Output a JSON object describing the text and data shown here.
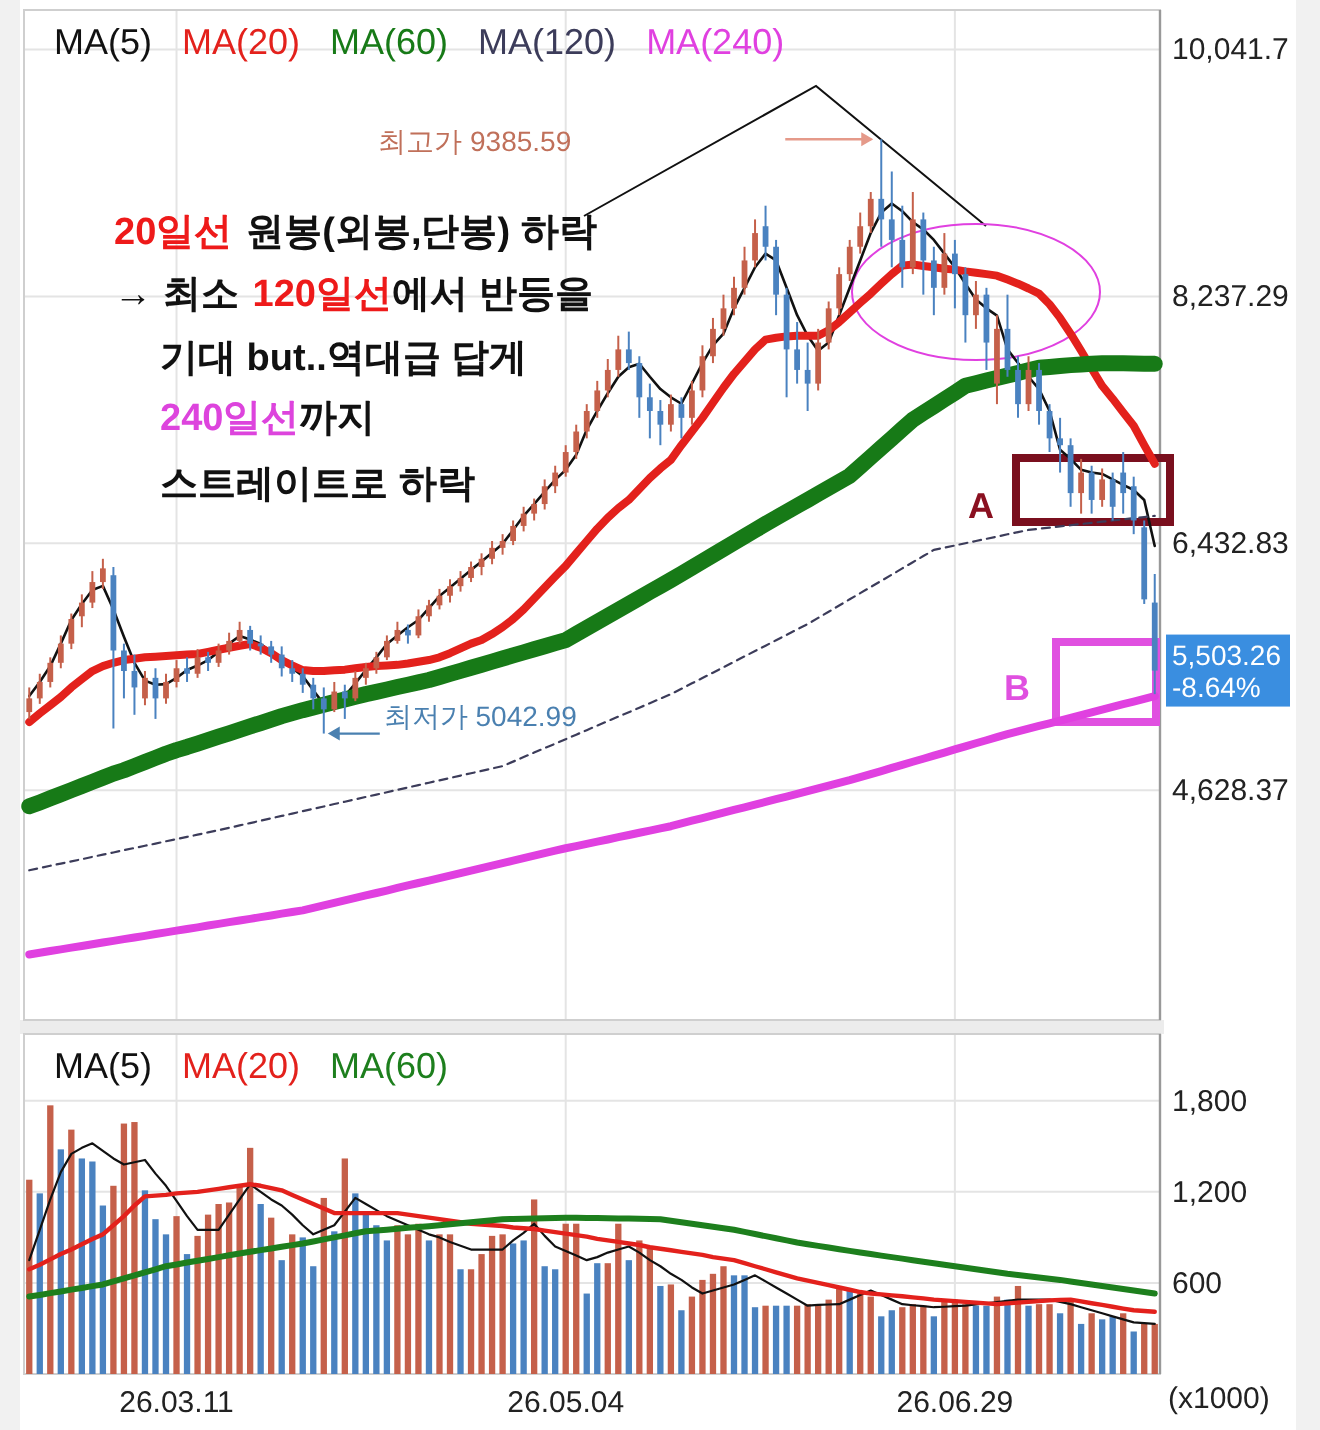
{
  "chart_data": [
    {
      "type": "candlestick",
      "legend": "top left",
      "grid": true,
      "tick_labels": "y",
      "ylim": [
        2950,
        10330
      ],
      "yticks": [
        {
          "value": 4628.37,
          "label": "4,628.37"
        },
        {
          "value": 6432.83,
          "label": "6,432.83"
        },
        {
          "value": 8237.29,
          "label": "8,237.29"
        },
        {
          "value": 10041.7,
          "label": "10,041.7"
        }
      ],
      "categories": [
        null,
        null,
        null,
        null,
        null,
        null,
        null,
        null,
        null,
        null,
        null,
        null,
        null,
        null,
        "26.03.11",
        null,
        null,
        null,
        null,
        null,
        null,
        null,
        null,
        null,
        null,
        null,
        null,
        null,
        null,
        null,
        null,
        null,
        null,
        null,
        null,
        null,
        null,
        null,
        null,
        null,
        null,
        null,
        null,
        null,
        null,
        null,
        null,
        null,
        null,
        null,
        null,
        "26.05.04",
        null,
        null,
        null,
        null,
        null,
        null,
        null,
        null,
        null,
        null,
        null,
        null,
        null,
        null,
        null,
        null,
        null,
        null,
        null,
        null,
        null,
        null,
        null,
        null,
        null,
        null,
        null,
        null,
        null,
        null,
        null,
        null,
        null,
        null,
        null,
        null,
        "26.06.29",
        null,
        null,
        null,
        null,
        null,
        null,
        null,
        null,
        null,
        null,
        null,
        null,
        null,
        null,
        null,
        null,
        null,
        null,
        null
      ],
      "ohlc": [
        [
          5200,
          5380,
          5150,
          5300
        ],
        [
          5300,
          5480,
          5260,
          5420
        ],
        [
          5420,
          5600,
          5380,
          5560
        ],
        [
          5560,
          5760,
          5520,
          5700
        ],
        [
          5700,
          5920,
          5660,
          5880
        ],
        [
          5900,
          6060,
          5820,
          6000
        ],
        [
          6000,
          6230,
          5960,
          6150
        ],
        [
          6150,
          6320,
          6100,
          6250
        ],
        [
          6200,
          6260,
          5080,
          5650
        ],
        [
          5650,
          5700,
          5300,
          5500
        ],
        [
          5500,
          5620,
          5180,
          5380
        ],
        [
          5300,
          5500,
          5250,
          5450
        ],
        [
          5450,
          5520,
          5150,
          5300
        ],
        [
          5300,
          5480,
          5260,
          5420
        ],
        [
          5420,
          5580,
          5380,
          5520
        ],
        [
          5520,
          5600,
          5420,
          5480
        ],
        [
          5480,
          5660,
          5450,
          5600
        ],
        [
          5600,
          5640,
          5500,
          5560
        ],
        [
          5560,
          5700,
          5530,
          5650
        ],
        [
          5650,
          5780,
          5620,
          5720
        ],
        [
          5720,
          5860,
          5700,
          5800
        ],
        [
          5800,
          5830,
          5650,
          5700
        ],
        [
          5700,
          5760,
          5620,
          5680
        ],
        [
          5680,
          5720,
          5560,
          5620
        ],
        [
          5620,
          5680,
          5460,
          5520
        ],
        [
          5520,
          5580,
          5420,
          5480
        ],
        [
          5480,
          5520,
          5340,
          5400
        ],
        [
          5400,
          5450,
          5220,
          5300
        ],
        [
          5300,
          5380,
          5042.99,
          5220
        ],
        [
          5220,
          5420,
          5200,
          5350
        ],
        [
          5350,
          5400,
          5150,
          5300
        ],
        [
          5300,
          5500,
          5280,
          5450
        ],
        [
          5450,
          5560,
          5400,
          5520
        ],
        [
          5520,
          5640,
          5480,
          5600
        ],
        [
          5600,
          5760,
          5580,
          5720
        ],
        [
          5720,
          5860,
          5700,
          5800
        ],
        [
          5800,
          5840,
          5700,
          5760
        ],
        [
          5760,
          5950,
          5740,
          5900
        ],
        [
          5900,
          6020,
          5860,
          5980
        ],
        [
          5980,
          6100,
          5950,
          6050
        ],
        [
          6050,
          6170,
          6000,
          6120
        ],
        [
          6120,
          6230,
          6080,
          6180
        ],
        [
          6180,
          6300,
          6150,
          6260
        ],
        [
          6260,
          6360,
          6200,
          6320
        ],
        [
          6320,
          6450,
          6280,
          6400
        ],
        [
          6400,
          6500,
          6350,
          6450
        ],
        [
          6450,
          6600,
          6420,
          6560
        ],
        [
          6560,
          6700,
          6520,
          6650
        ],
        [
          6650,
          6760,
          6600,
          6720
        ],
        [
          6720,
          6900,
          6680,
          6850
        ],
        [
          6850,
          7000,
          6800,
          6950
        ],
        [
          6950,
          7150,
          6920,
          7100
        ],
        [
          7100,
          7300,
          7050,
          7250
        ],
        [
          7250,
          7450,
          7200,
          7400
        ],
        [
          7400,
          7620,
          7350,
          7550
        ],
        [
          7550,
          7780,
          7500,
          7700
        ],
        [
          7700,
          7950,
          7650,
          7850
        ],
        [
          7850,
          7980,
          7700,
          7750
        ],
        [
          7750,
          7800,
          7350,
          7500
        ],
        [
          7500,
          7600,
          7200,
          7400
        ],
        [
          7400,
          7480,
          7150,
          7300
        ],
        [
          7300,
          7520,
          7250,
          7450
        ],
        [
          7450,
          7500,
          7200,
          7350
        ],
        [
          7350,
          7620,
          7300,
          7550
        ],
        [
          7550,
          7880,
          7500,
          7800
        ],
        [
          7800,
          8080,
          7750,
          8000
        ],
        [
          8000,
          8250,
          7950,
          8150
        ],
        [
          8150,
          8380,
          8100,
          8300
        ],
        [
          8300,
          8600,
          8250,
          8500
        ],
        [
          8500,
          8800,
          8450,
          8700
        ],
        [
          8750,
          8900,
          8500,
          8600
        ],
        [
          8600,
          8650,
          8100,
          8250
        ],
        [
          8250,
          8300,
          7500,
          7850
        ],
        [
          7850,
          8050,
          7600,
          7700
        ],
        [
          7700,
          7900,
          7400,
          7600
        ],
        [
          7600,
          8000,
          7550,
          7900
        ],
        [
          7900,
          8200,
          7850,
          8150
        ],
        [
          8150,
          8450,
          8100,
          8400
        ],
        [
          8400,
          8650,
          8350,
          8600
        ],
        [
          8600,
          8850,
          8550,
          8750
        ],
        [
          8750,
          9000,
          8700,
          8950
        ],
        [
          8950,
          9385.59,
          8600,
          8800
        ],
        [
          8800,
          9150,
          8450,
          8650
        ],
        [
          8650,
          8900,
          8300,
          8450
        ],
        [
          8450,
          9000,
          8400,
          8800
        ],
        [
          8800,
          8850,
          8250,
          8500
        ],
        [
          8500,
          8600,
          8100,
          8300
        ],
        [
          8300,
          8700,
          8250,
          8550
        ],
        [
          8550,
          8650,
          8150,
          8400
        ],
        [
          8400,
          8450,
          7900,
          8100
        ],
        [
          8100,
          8350,
          8000,
          8250
        ],
        [
          8250,
          8300,
          7700,
          7900
        ],
        [
          7600,
          8100,
          7450,
          8000
        ],
        [
          8000,
          8250,
          7650,
          7700
        ],
        [
          7700,
          7800,
          7350,
          7450
        ],
        [
          7450,
          7800,
          7400,
          7700
        ],
        [
          7700,
          7750,
          7300,
          7400
        ],
        [
          7400,
          7450,
          7100,
          7200
        ],
        [
          7200,
          7350,
          6950,
          7150
        ],
        [
          7150,
          7200,
          6700,
          6800
        ],
        [
          6800,
          7050,
          6650,
          6950
        ],
        [
          6950,
          7000,
          6650,
          6750
        ],
        [
          6750,
          6980,
          6700,
          6900
        ],
        [
          6900,
          6950,
          6600,
          6700
        ],
        [
          6950,
          7100,
          6650,
          6800
        ],
        [
          6850,
          6920,
          6500,
          6600
        ],
        [
          6550,
          6600,
          5990,
          6023.6
        ],
        [
          6000,
          6209,
          5331,
          5503.26
        ]
      ],
      "colors": [
        "#c5604a",
        "#c5604a",
        "#c5604a",
        "#c5604a",
        "#c5604a",
        "#c5604a",
        "#c5604a",
        "#c5604a",
        "#4a82c0",
        "#4a82c0",
        "#4a82c0",
        "#c5604a",
        "#4a82c0",
        "#c5604a",
        "#c5604a",
        "#4a82c0",
        "#c5604a",
        "#4a82c0",
        "#c5604a",
        "#c5604a",
        "#c5604a",
        "#4a82c0",
        "#4a82c0",
        "#4a82c0",
        "#4a82c0",
        "#4a82c0",
        "#4a82c0",
        "#4a82c0",
        "#4a82c0",
        "#c5604a",
        "#4a82c0",
        "#c5604a",
        "#c5604a",
        "#c5604a",
        "#c5604a",
        "#c5604a",
        "#4a82c0",
        "#c5604a",
        "#c5604a",
        "#c5604a",
        "#c5604a",
        "#c5604a",
        "#c5604a",
        "#c5604a",
        "#c5604a",
        "#c5604a",
        "#c5604a",
        "#c5604a",
        "#c5604a",
        "#c5604a",
        "#c5604a",
        "#c5604a",
        "#c5604a",
        "#c5604a",
        "#c5604a",
        "#c5604a",
        "#c5604a",
        "#4a82c0",
        "#4a82c0",
        "#4a82c0",
        "#4a82c0",
        "#c5604a",
        "#4a82c0",
        "#c5604a",
        "#c5604a",
        "#c5604a",
        "#c5604a",
        "#c5604a",
        "#c5604a",
        "#c5604a",
        "#4a82c0",
        "#4a82c0",
        "#4a82c0",
        "#4a82c0",
        "#4a82c0",
        "#c5604a",
        "#c5604a",
        "#c5604a",
        "#c5604a",
        "#c5604a",
        "#c5604a",
        "#4a82c0",
        "#4a82c0",
        "#4a82c0",
        "#c5604a",
        "#4a82c0",
        "#4a82c0",
        "#c5604a",
        "#4a82c0",
        "#4a82c0",
        "#c5604a",
        "#4a82c0",
        "#c5604a",
        "#4a82c0",
        "#4a82c0",
        "#c5604a",
        "#4a82c0",
        "#4a82c0",
        "#4a82c0",
        "#4a82c0",
        "#c5604a",
        "#4a82c0",
        "#c5604a",
        "#4a82c0",
        "#4a82c0",
        "#4a82c0",
        "#4a82c0",
        "#4a82c0"
      ],
      "series": [
        {
          "type": "line",
          "name": "MA(5)",
          "color": "#111111",
          "values": [
            5317,
            5420,
            5536,
            5700,
            5873,
            5990,
            6092,
            6122,
            5950,
            5750,
            5560,
            5430,
            5400,
            5404,
            5450,
            5507,
            5540,
            5580,
            5640,
            5700,
            5756,
            5730,
            5697,
            5640,
            5580,
            5520,
            5463,
            5360,
            5258,
            5280,
            5317,
            5410,
            5507,
            5600,
            5697,
            5760,
            5820,
            5873,
            5960,
            6048,
            6110,
            6175,
            6239,
            6300,
            6365,
            6429,
            6530,
            6633,
            6720,
            6810,
            6897,
            6970,
            7080,
            7263,
            7400,
            7530,
            7650,
            7720,
            7745,
            7650,
            7560,
            7500,
            7453,
            7600,
            7750,
            7880,
            7965,
            8150,
            8300,
            8450,
            8550,
            8500,
            8300,
            8100,
            7950,
            7840,
            7900,
            8100,
            8300,
            8500,
            8700,
            8850,
            8916,
            8860,
            8780,
            8726,
            8650,
            8550,
            8450,
            8330,
            8214,
            8150,
            8097,
            7850,
            7750,
            7650,
            7560,
            7400,
            7116,
            7050,
            6970,
            6950,
            6940,
            6900,
            6860,
            6823,
            6750,
            6414
          ]
        },
        {
          "type": "line",
          "name": "MA(20)",
          "color": "#e3211c",
          "values": [
            5127,
            5190,
            5250,
            5310,
            5380,
            5440,
            5500,
            5536,
            5560,
            5580,
            5590,
            5600,
            5605,
            5610,
            5615,
            5620,
            5624,
            5640,
            5655,
            5670,
            5685,
            5697,
            5670,
            5630,
            5580,
            5540,
            5507,
            5500,
            5500,
            5505,
            5510,
            5520,
            5530,
            5536,
            5540,
            5545,
            5555,
            5568,
            5580,
            5600,
            5630,
            5665,
            5700,
            5726,
            5770,
            5820,
            5880,
            5950,
            6030,
            6110,
            6190,
            6268,
            6360,
            6450,
            6540,
            6620,
            6690,
            6750,
            6830,
            6910,
            6980,
            7043,
            7150,
            7250,
            7350,
            7460,
            7570,
            7672,
            7760,
            7850,
            7921,
            7935,
            7945,
            7950,
            7950,
            7950,
            7990,
            8050,
            8120,
            8190,
            8257,
            8330,
            8400,
            8462,
            8470,
            8460,
            8450,
            8440,
            8433,
            8420,
            8410,
            8400,
            8389,
            8360,
            8330,
            8295,
            8257,
            8180,
            8080,
            7965,
            7840,
            7710,
            7584,
            7490,
            7390,
            7292,
            7150,
            7014
          ]
        },
        {
          "type": "line",
          "name": "MA(60)",
          "color": "#177a17",
          "values": [
            4512,
            4540,
            4570,
            4600,
            4630,
            4660,
            4690,
            4720,
            4750,
            4775,
            4805,
            4835,
            4865,
            4895,
            4922,
            4945,
            4970,
            4995,
            5020,
            5045,
            5070,
            5095,
            5120,
            5145,
            5170,
            5192,
            5214,
            5234,
            5253,
            5273,
            5292,
            5312,
            5331,
            5348,
            5365,
            5383,
            5400,
            5417,
            5434,
            5456,
            5479,
            5501,
            5524,
            5546,
            5569,
            5591,
            5614,
            5636,
            5659,
            5681,
            5704,
            5726,
            5770,
            5814,
            5858,
            5902,
            5946,
            5990,
            6034,
            6078,
            6121,
            6165,
            6210,
            6256,
            6301,
            6347,
            6393,
            6438,
            6484,
            6529,
            6575,
            6619,
            6663,
            6707,
            6750,
            6794,
            6838,
            6882,
            6926,
            6994,
            7063,
            7131,
            7199,
            7268,
            7336,
            7386,
            7435,
            7485,
            7534,
            7584,
            7603,
            7622,
            7641,
            7659,
            7678,
            7697,
            7716,
            7722,
            7728,
            7735,
            7740,
            7745,
            7748,
            7748,
            7748,
            7747,
            7746,
            7745
          ]
        },
        {
          "type": "line",
          "name": "MA(120)",
          "color": "#3c3c5a",
          "line_style": "dashed",
          "values": [
            4044,
            4060,
            4077,
            4093,
            4109,
            4125,
            4142,
            4158,
            4174,
            4191,
            4207,
            4223,
            4239,
            4256,
            4272,
            4288,
            4304,
            4321,
            4337,
            4354,
            4372,
            4389,
            4406,
            4424,
            4441,
            4458,
            4476,
            4493,
            4510,
            4528,
            4545,
            4562,
            4580,
            4597,
            4614,
            4632,
            4649,
            4666,
            4684,
            4701,
            4718,
            4736,
            4753,
            4770,
            4788,
            4805,
            4838,
            4871,
            4904,
            4937,
            4969,
            5002,
            5035,
            5068,
            5101,
            5134,
            5167,
            5199,
            5232,
            5265,
            5298,
            5331,
            5370,
            5410,
            5449,
            5488,
            5528,
            5567,
            5607,
            5646,
            5685,
            5725,
            5764,
            5804,
            5843,
            5888,
            5933,
            5979,
            6024,
            6069,
            6114,
            6159,
            6204,
            6250,
            6295,
            6340,
            6385,
            6401,
            6417,
            6434,
            6450,
            6466,
            6482,
            6499,
            6515,
            6531,
            6540,
            6548,
            6557,
            6565,
            6574,
            6582,
            6591,
            6600,
            6608,
            6617,
            6625,
            6634
          ]
        },
        {
          "type": "line",
          "name": "MA(240)",
          "color": "#e040e0",
          "values": [
            3429,
            3441,
            3454,
            3466,
            3479,
            3491,
            3503,
            3516,
            3528,
            3541,
            3553,
            3565,
            3578,
            3590,
            3603,
            3615,
            3627,
            3640,
            3652,
            3665,
            3677,
            3689,
            3702,
            3714,
            3727,
            3739,
            3751,
            3769,
            3787,
            3806,
            3824,
            3842,
            3860,
            3878,
            3896,
            3915,
            3933,
            3951,
            3969,
            3987,
            4005,
            4024,
            4042,
            4060,
            4078,
            4096,
            4114,
            4133,
            4151,
            4169,
            4187,
            4205,
            4221,
            4237,
            4253,
            4269,
            4286,
            4302,
            4318,
            4334,
            4350,
            4366,
            4386,
            4406,
            4425,
            4445,
            4465,
            4485,
            4504,
            4524,
            4544,
            4564,
            4583,
            4603,
            4623,
            4643,
            4662,
            4682,
            4702,
            4724,
            4747,
            4769,
            4792,
            4814,
            4837,
            4859,
            4882,
            4904,
            4927,
            4949,
            4972,
            4994,
            5017,
            5039,
            5059,
            5079,
            5099,
            5118,
            5138,
            5158,
            5178,
            5198,
            5218,
            5238,
            5258,
            5277,
            5297,
            5317
          ]
        }
      ],
      "annotations": [
        "최고가 9385.59",
        "최저가 5042.99",
        "20일선",
        "원봉(외봉,단봉) 하락",
        "→ 최소",
        "120일선",
        "에서 반등을",
        "기대 but..역대급 답게",
        "240일선",
        "까지",
        "스트레이트로 하락",
        "A",
        "B",
        "5,503.26",
        "-8.64%"
      ]
    },
    {
      "type": "bar",
      "legend": "top left",
      "grid": true,
      "ylabel": "(x1000)",
      "ylim": [
        0,
        2240
      ],
      "yticks": [
        600,
        {
          "value": 1200,
          "label": "1,200"
        },
        {
          "value": 1800,
          "label": "1,800"
        }
      ],
      "categories": [
        null,
        null,
        null,
        null,
        null,
        null,
        null,
        null,
        null,
        null,
        null,
        null,
        null,
        null,
        "26.03.11",
        null,
        null,
        null,
        null,
        null,
        null,
        null,
        null,
        null,
        null,
        null,
        null,
        null,
        null,
        null,
        null,
        null,
        null,
        null,
        null,
        null,
        null,
        null,
        null,
        null,
        null,
        null,
        null,
        null,
        null,
        null,
        null,
        null,
        null,
        null,
        null,
        "26.05.04",
        null,
        null,
        null,
        null,
        null,
        null,
        null,
        null,
        null,
        null,
        null,
        null,
        null,
        null,
        null,
        null,
        null,
        null,
        null,
        null,
        null,
        null,
        null,
        null,
        null,
        null,
        null,
        null,
        null,
        null,
        null,
        null,
        null,
        null,
        null,
        null,
        "26.06.29",
        null,
        null,
        null,
        null,
        null,
        null,
        null,
        null,
        null,
        null,
        null,
        null,
        null,
        null,
        null,
        null,
        null,
        null,
        null
      ],
      "values": [
        1280,
        1190,
        1770,
        1480,
        1610,
        1420,
        1400,
        1110,
        1240,
        1650,
        1660,
        1210,
        1020,
        920,
        1040,
        790,
        910,
        1050,
        1120,
        1130,
        1240,
        1490,
        1120,
        1030,
        750,
        920,
        900,
        710,
        1160,
        940,
        1420,
        1190,
        1060,
        980,
        880,
        980,
        920,
        990,
        880,
        920,
        920,
        690,
        690,
        790,
        910,
        920,
        860,
        880,
        1150,
        710,
        690,
        990,
        990,
        530,
        730,
        730,
        990,
        750,
        880,
        840,
        580,
        590,
        420,
        510,
        620,
        660,
        710,
        650,
        650,
        440,
        450,
        450,
        450,
        450,
        460,
        460,
        490,
        580,
        550,
        530,
        510,
        380,
        420,
        440,
        460,
        450,
        380,
        490,
        490,
        460,
        450,
        450,
        510,
        490,
        580,
        450,
        460,
        460,
        400,
        490,
        330,
        400,
        360,
        380,
        400,
        280,
        330,
        330
      ],
      "colors": [
        "#c5604a",
        "#4a82c0",
        "#c5604a",
        "#4a82c0",
        "#c5604a",
        "#4a82c0",
        "#4a82c0",
        "#4a82c0",
        "#c5604a",
        "#c5604a",
        "#c5604a",
        "#4a82c0",
        "#4a82c0",
        "#4a82c0",
        "#c5604a",
        "#4a82c0",
        "#c5604a",
        "#c5604a",
        "#c5604a",
        "#c5604a",
        "#c5604a",
        "#c5604a",
        "#4a82c0",
        "#c5604a",
        "#4a82c0",
        "#c5604a",
        "#4a82c0",
        "#4a82c0",
        "#c5604a",
        "#4a82c0",
        "#c5604a",
        "#4a82c0",
        "#4a82c0",
        "#4a82c0",
        "#4a82c0",
        "#c5604a",
        "#c5604a",
        "#c5604a",
        "#4a82c0",
        "#c5604a",
        "#c5604a",
        "#4a82c0",
        "#c5604a",
        "#c5604a",
        "#c5604a",
        "#c5604a",
        "#4a82c0",
        "#4a82c0",
        "#c5604a",
        "#4a82c0",
        "#4a82c0",
        "#c5604a",
        "#c5604a",
        "#4a82c0",
        "#4a82c0",
        "#c5604a",
        "#c5604a",
        "#4a82c0",
        "#c5604a",
        "#c5604a",
        "#4a82c0",
        "#c5604a",
        "#4a82c0",
        "#c5604a",
        "#c5604a",
        "#c5604a",
        "#c5604a",
        "#4a82c0",
        "#4a82c0",
        "#4a82c0",
        "#c5604a",
        "#4a82c0",
        "#4a82c0",
        "#c5604a",
        "#c5604a",
        "#c5604a",
        "#c5604a",
        "#c5604a",
        "#4a82c0",
        "#c5604a",
        "#c5604a",
        "#4a82c0",
        "#4a82c0",
        "#c5604a",
        "#c5604a",
        "#c5604a",
        "#4a82c0",
        "#c5604a",
        "#c5604a",
        "#c5604a",
        "#4a82c0",
        "#4a82c0",
        "#c5604a",
        "#4a82c0",
        "#c5604a",
        "#4a82c0",
        "#c5604a",
        "#c5604a",
        "#4a82c0",
        "#c5604a",
        "#4a82c0",
        "#c5604a",
        "#4a82c0",
        "#4a82c0",
        "#c5604a",
        "#4a82c0",
        "#c5604a",
        "#c5604a"
      ],
      "series": [
        {
          "type": "line",
          "name": "MA(5)",
          "color": "#111111",
          "values": [
            750,
            950,
            1150,
            1330,
            1450,
            1490,
            1520,
            1470,
            1420,
            1380,
            1395,
            1410,
            1320,
            1240,
            1140,
            1040,
            950,
            950,
            950,
            1050,
            1150,
            1250,
            1200,
            1150,
            1110,
            1050,
            980,
            920,
            950,
            980,
            1070,
            1160,
            1120,
            1080,
            1040,
            1010,
            980,
            950,
            920,
            900,
            870,
            845,
            820,
            820,
            820,
            820,
            880,
            930,
            990,
            910,
            840,
            810,
            780,
            750,
            770,
            800,
            820,
            840,
            800,
            750,
            710,
            660,
            620,
            570,
            530,
            550,
            570,
            590,
            620,
            650,
            610,
            570,
            530,
            490,
            450,
            455,
            458,
            460,
            490,
            520,
            550,
            520,
            490,
            460,
            453,
            447,
            440,
            443,
            447,
            450,
            458,
            466,
            474,
            482,
            490,
            490,
            490,
            490,
            475,
            460,
            440,
            420,
            400,
            380,
            360,
            340,
            335,
            330
          ]
        },
        {
          "type": "line",
          "name": "MA(20)",
          "color": "#e3211c",
          "values": [
            690,
            720,
            755,
            790,
            820,
            855,
            890,
            920,
            980,
            1040,
            1110,
            1170,
            1175,
            1180,
            1190,
            1195,
            1200,
            1210,
            1220,
            1230,
            1240,
            1250,
            1240,
            1225,
            1210,
            1180,
            1150,
            1120,
            1090,
            1060,
            1060,
            1060,
            1060,
            1060,
            1060,
            1060,
            1050,
            1040,
            1030,
            1020,
            1010,
            1000,
            990,
            985,
            980,
            975,
            965,
            960,
            955,
            945,
            935,
            925,
            915,
            905,
            890,
            880,
            870,
            860,
            850,
            835,
            825,
            815,
            805,
            795,
            785,
            770,
            760,
            750,
            730,
            710,
            690,
            670,
            650,
            630,
            615,
            600,
            585,
            570,
            555,
            540,
            530,
            525,
            518,
            512,
            505,
            498,
            490,
            485,
            480,
            475,
            470,
            465,
            460,
            465,
            470,
            475,
            480,
            485,
            488,
            490,
            478,
            466,
            455,
            443,
            431,
            420,
            415,
            410
          ]
        },
        {
          "type": "line",
          "name": "MA(60)",
          "color": "#1d7f1d",
          "values": [
            510,
            521,
            533,
            544,
            556,
            567,
            579,
            590,
            610,
            630,
            650,
            670,
            690,
            710,
            722,
            734,
            746,
            758,
            770,
            782,
            794,
            805,
            816,
            827,
            838,
            849,
            860,
            873,
            887,
            900,
            913,
            927,
            940,
            946,
            951,
            957,
            963,
            969,
            974,
            980,
            987,
            993,
            1000,
            1007,
            1013,
            1020,
            1022,
            1023,
            1025,
            1026,
            1028,
            1030,
            1029,
            1028,
            1027,
            1026,
            1025,
            1024,
            1023,
            1022,
            1020,
            1010,
            1000,
            990,
            980,
            970,
            960,
            950,
            936,
            922,
            908,
            894,
            880,
            866,
            855,
            844,
            833,
            822,
            811,
            800,
            790,
            780,
            770,
            760,
            750,
            740,
            730,
            720,
            710,
            700,
            690,
            680,
            670,
            660,
            652,
            644,
            636,
            628,
            620,
            610,
            600,
            590,
            580,
            570,
            560,
            550,
            540,
            530
          ]
        }
      ]
    }
  ]
}
